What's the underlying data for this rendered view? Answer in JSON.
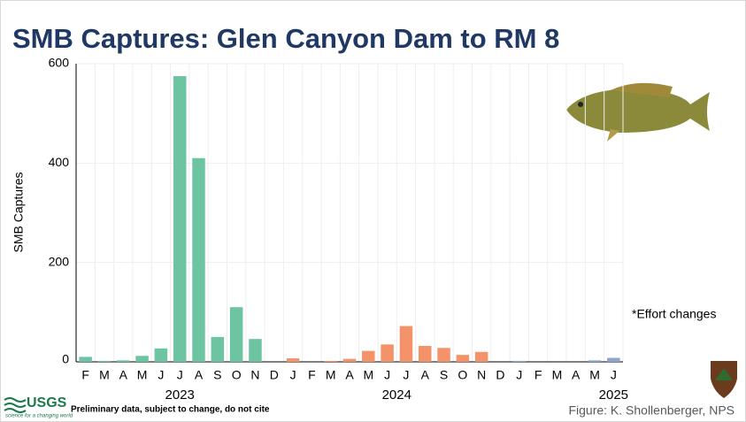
{
  "chart_data": {
    "type": "bar",
    "title": "SMB Captures: Glen Canyon Dam to RM 8",
    "y_label": "SMB Captures",
    "categories": [
      "F",
      "M",
      "A",
      "M",
      "J",
      "J",
      "A",
      "S",
      "O",
      "N",
      "D",
      "J",
      "F",
      "M",
      "A",
      "M",
      "J",
      "J",
      "A",
      "S",
      "O",
      "N",
      "D",
      "J",
      "F",
      "M",
      "A",
      "M",
      "J"
    ],
    "series": [
      {
        "name": "2023",
        "color": "#6cc4a1",
        "values": [
          10,
          2,
          3,
          12,
          27,
          575,
          410,
          50,
          110,
          46,
          0,
          null,
          null,
          null,
          null,
          null,
          null,
          null,
          null,
          null,
          null,
          null,
          null,
          null,
          null,
          null,
          null,
          null,
          null
        ]
      },
      {
        "name": "2024",
        "color": "#f4926a",
        "values": [
          null,
          null,
          null,
          null,
          null,
          null,
          null,
          null,
          null,
          null,
          null,
          7,
          0,
          2,
          6,
          22,
          35,
          72,
          32,
          28,
          14,
          20,
          0,
          null,
          null,
          null,
          null,
          null,
          null
        ]
      },
      {
        "name": "2025",
        "color": "#8fa3d0",
        "values": [
          null,
          null,
          null,
          null,
          null,
          null,
          null,
          null,
          null,
          null,
          null,
          null,
          null,
          null,
          null,
          null,
          null,
          null,
          null,
          null,
          null,
          null,
          null,
          2,
          0,
          0,
          0,
          3,
          8
        ]
      }
    ],
    "ylim": [
      0,
      600
    ],
    "yticks": [
      0,
      200,
      400,
      600
    ],
    "grid": true,
    "annotation": "*Effort changes",
    "footnote": "Preliminary data, subject to change, do not cite",
    "credit": "Figure: K. Shollenberger, NPS",
    "logo_text": "USGS",
    "logo_tagline": "science for a changing world"
  }
}
